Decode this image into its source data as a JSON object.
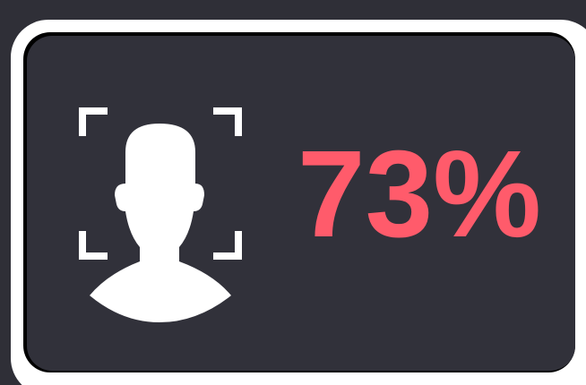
{
  "score": {
    "text": "73%"
  }
}
